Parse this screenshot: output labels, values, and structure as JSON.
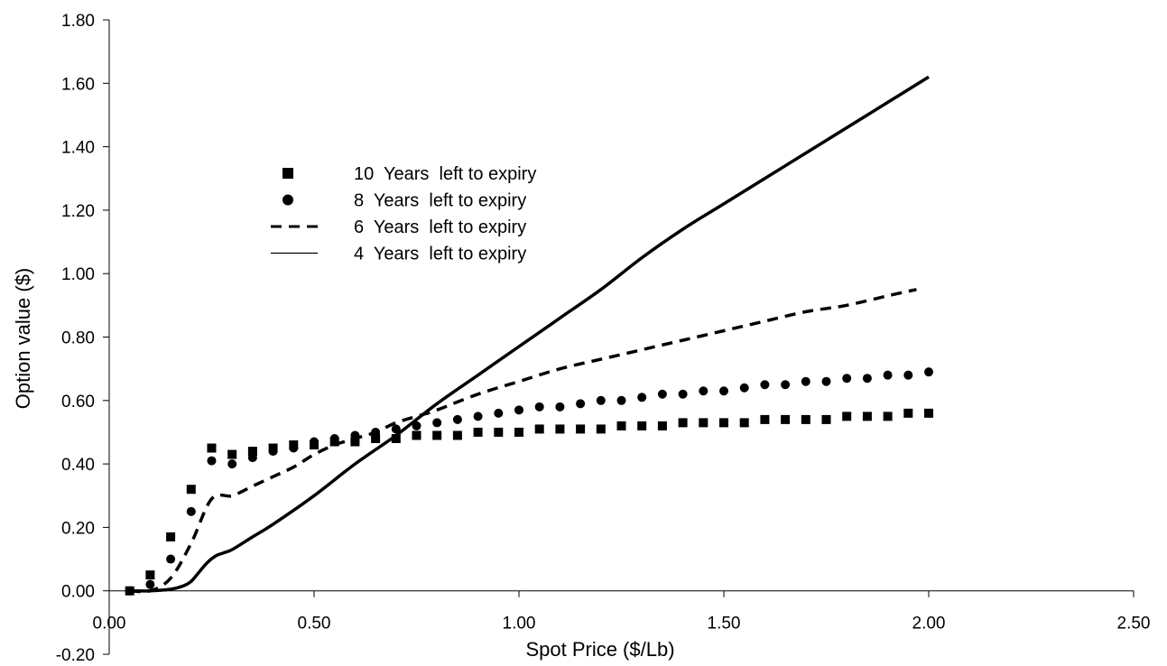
{
  "chart_data": {
    "type": "line",
    "title": "",
    "xlabel": "Spot Price ($/Lb)",
    "ylabel": "Option value ($)",
    "xlim": [
      0,
      2.5
    ],
    "ylim": [
      -0.2,
      1.8
    ],
    "x_ticks": [
      "0.00",
      "0.50",
      "1.00",
      "1.50",
      "2.00",
      "2.50"
    ],
    "x_tick_values": [
      0,
      0.5,
      1.0,
      1.5,
      2.0,
      2.5
    ],
    "y_ticks": [
      "-0.20",
      "0.00",
      "0.20",
      "0.40",
      "0.60",
      "0.80",
      "1.00",
      "1.20",
      "1.40",
      "1.60",
      "1.80"
    ],
    "y_tick_values": [
      -0.2,
      0,
      0.2,
      0.4,
      0.6,
      0.8,
      1.0,
      1.2,
      1.4,
      1.6,
      1.8
    ],
    "grid": false,
    "legend_position": "upper-left",
    "series": [
      {
        "name": "10  Years  left to expiry",
        "style": "square-markers",
        "color": "#000000",
        "x": [
          0.05,
          0.1,
          0.15,
          0.2,
          0.25,
          0.3,
          0.35,
          0.4,
          0.45,
          0.5,
          0.55,
          0.6,
          0.65,
          0.7,
          0.75,
          0.8,
          0.85,
          0.9,
          0.95,
          1.0,
          1.05,
          1.1,
          1.15,
          1.2,
          1.25,
          1.3,
          1.35,
          1.4,
          1.45,
          1.5,
          1.55,
          1.6,
          1.65,
          1.7,
          1.75,
          1.8,
          1.85,
          1.9,
          1.95,
          2.0
        ],
        "y": [
          0.0,
          0.05,
          0.17,
          0.32,
          0.45,
          0.43,
          0.44,
          0.45,
          0.46,
          0.46,
          0.47,
          0.47,
          0.48,
          0.48,
          0.49,
          0.49,
          0.49,
          0.5,
          0.5,
          0.5,
          0.51,
          0.51,
          0.51,
          0.51,
          0.52,
          0.52,
          0.52,
          0.53,
          0.53,
          0.53,
          0.53,
          0.54,
          0.54,
          0.54,
          0.54,
          0.55,
          0.55,
          0.55,
          0.56,
          0.56
        ]
      },
      {
        "name": "8  Years  left to expiry",
        "style": "circle-markers",
        "color": "#000000",
        "x": [
          0.05,
          0.1,
          0.15,
          0.2,
          0.25,
          0.3,
          0.35,
          0.4,
          0.45,
          0.5,
          0.55,
          0.6,
          0.65,
          0.7,
          0.75,
          0.8,
          0.85,
          0.9,
          0.95,
          1.0,
          1.05,
          1.1,
          1.15,
          1.2,
          1.25,
          1.3,
          1.35,
          1.4,
          1.45,
          1.5,
          1.55,
          1.6,
          1.65,
          1.7,
          1.75,
          1.8,
          1.85,
          1.9,
          1.95,
          2.0
        ],
        "y": [
          0.0,
          0.02,
          0.1,
          0.25,
          0.41,
          0.4,
          0.42,
          0.44,
          0.45,
          0.47,
          0.48,
          0.49,
          0.5,
          0.51,
          0.52,
          0.53,
          0.54,
          0.55,
          0.56,
          0.57,
          0.58,
          0.58,
          0.59,
          0.6,
          0.6,
          0.61,
          0.62,
          0.62,
          0.63,
          0.63,
          0.64,
          0.65,
          0.65,
          0.66,
          0.66,
          0.67,
          0.67,
          0.68,
          0.68,
          0.69
        ]
      },
      {
        "name": "6  Years  left to expiry",
        "style": "dashed-line",
        "color": "#000000",
        "x": [
          0.05,
          0.1,
          0.15,
          0.2,
          0.25,
          0.3,
          0.35,
          0.4,
          0.45,
          0.5,
          0.55,
          0.6,
          0.65,
          0.7,
          0.75,
          0.8,
          0.9,
          1.0,
          1.1,
          1.2,
          1.3,
          1.4,
          1.5,
          1.6,
          1.7,
          1.8,
          1.9,
          1.97
        ],
        "y": [
          0.0,
          0.0,
          0.04,
          0.15,
          0.29,
          0.3,
          0.33,
          0.36,
          0.39,
          0.43,
          0.46,
          0.48,
          0.5,
          0.53,
          0.55,
          0.57,
          0.62,
          0.66,
          0.7,
          0.73,
          0.76,
          0.79,
          0.82,
          0.85,
          0.88,
          0.9,
          0.93,
          0.95
        ]
      },
      {
        "name": "4  Years  left to expiry",
        "style": "solid-line",
        "color": "#000000",
        "x": [
          0.05,
          0.1,
          0.15,
          0.18,
          0.2,
          0.22,
          0.24,
          0.26,
          0.28,
          0.3,
          0.35,
          0.4,
          0.5,
          0.6,
          0.7,
          0.8,
          0.9,
          1.0,
          1.1,
          1.2,
          1.3,
          1.4,
          1.5,
          1.6,
          1.7,
          1.8,
          1.9,
          2.0
        ],
        "y": [
          0.0,
          0.0,
          0.005,
          0.015,
          0.03,
          0.06,
          0.09,
          0.11,
          0.12,
          0.13,
          0.17,
          0.21,
          0.3,
          0.4,
          0.49,
          0.59,
          0.68,
          0.77,
          0.86,
          0.95,
          1.05,
          1.14,
          1.22,
          1.3,
          1.38,
          1.46,
          1.54,
          1.62
        ]
      }
    ]
  }
}
